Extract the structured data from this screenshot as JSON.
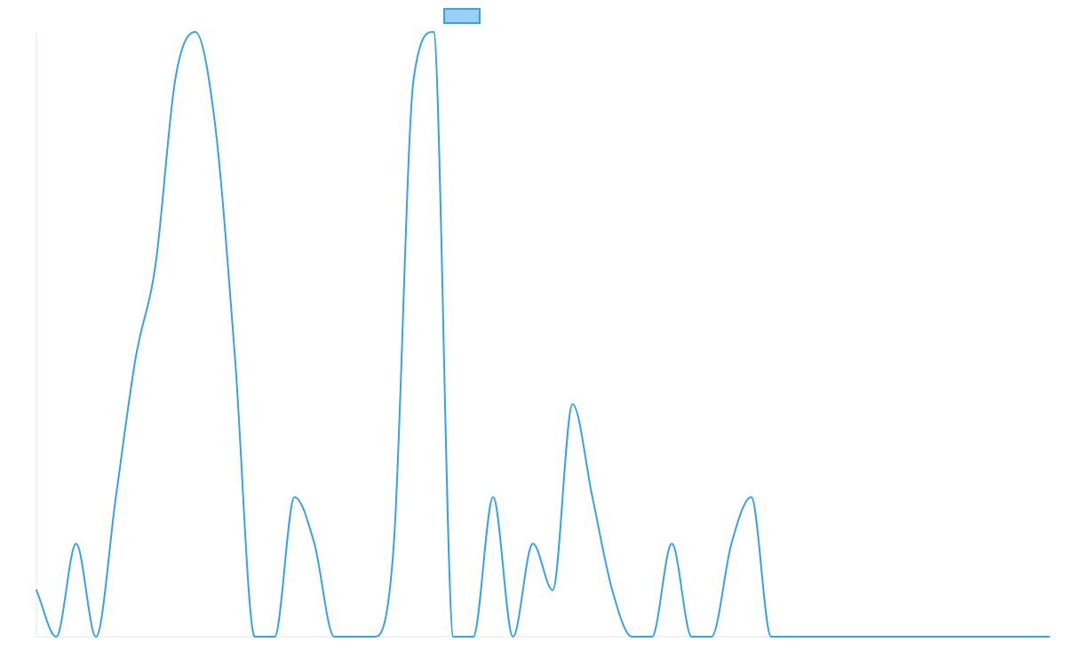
{
  "chart_data": {
    "type": "line",
    "title": "",
    "xlabel": "",
    "ylabel": "",
    "legend": {
      "position": "top-center",
      "entries": [
        ""
      ]
    },
    "grid": false,
    "ylim": [
      0,
      13
    ],
    "xlim": [
      0,
      51
    ],
    "series": [
      {
        "name": "",
        "stroke": "#36a2eb",
        "fill": "#9ad0f5",
        "values": [
          1,
          0,
          2,
          0,
          3,
          6,
          8,
          12,
          13,
          11,
          6,
          0,
          0,
          3,
          2,
          0,
          0,
          0,
          2,
          12,
          13,
          0,
          0,
          3,
          0,
          2,
          1,
          5,
          3,
          1,
          0,
          0,
          2,
          0,
          0,
          2,
          3,
          0,
          0,
          0,
          0,
          0,
          0,
          0,
          0,
          0,
          0,
          0,
          0,
          0,
          0,
          0
        ]
      }
    ]
  }
}
